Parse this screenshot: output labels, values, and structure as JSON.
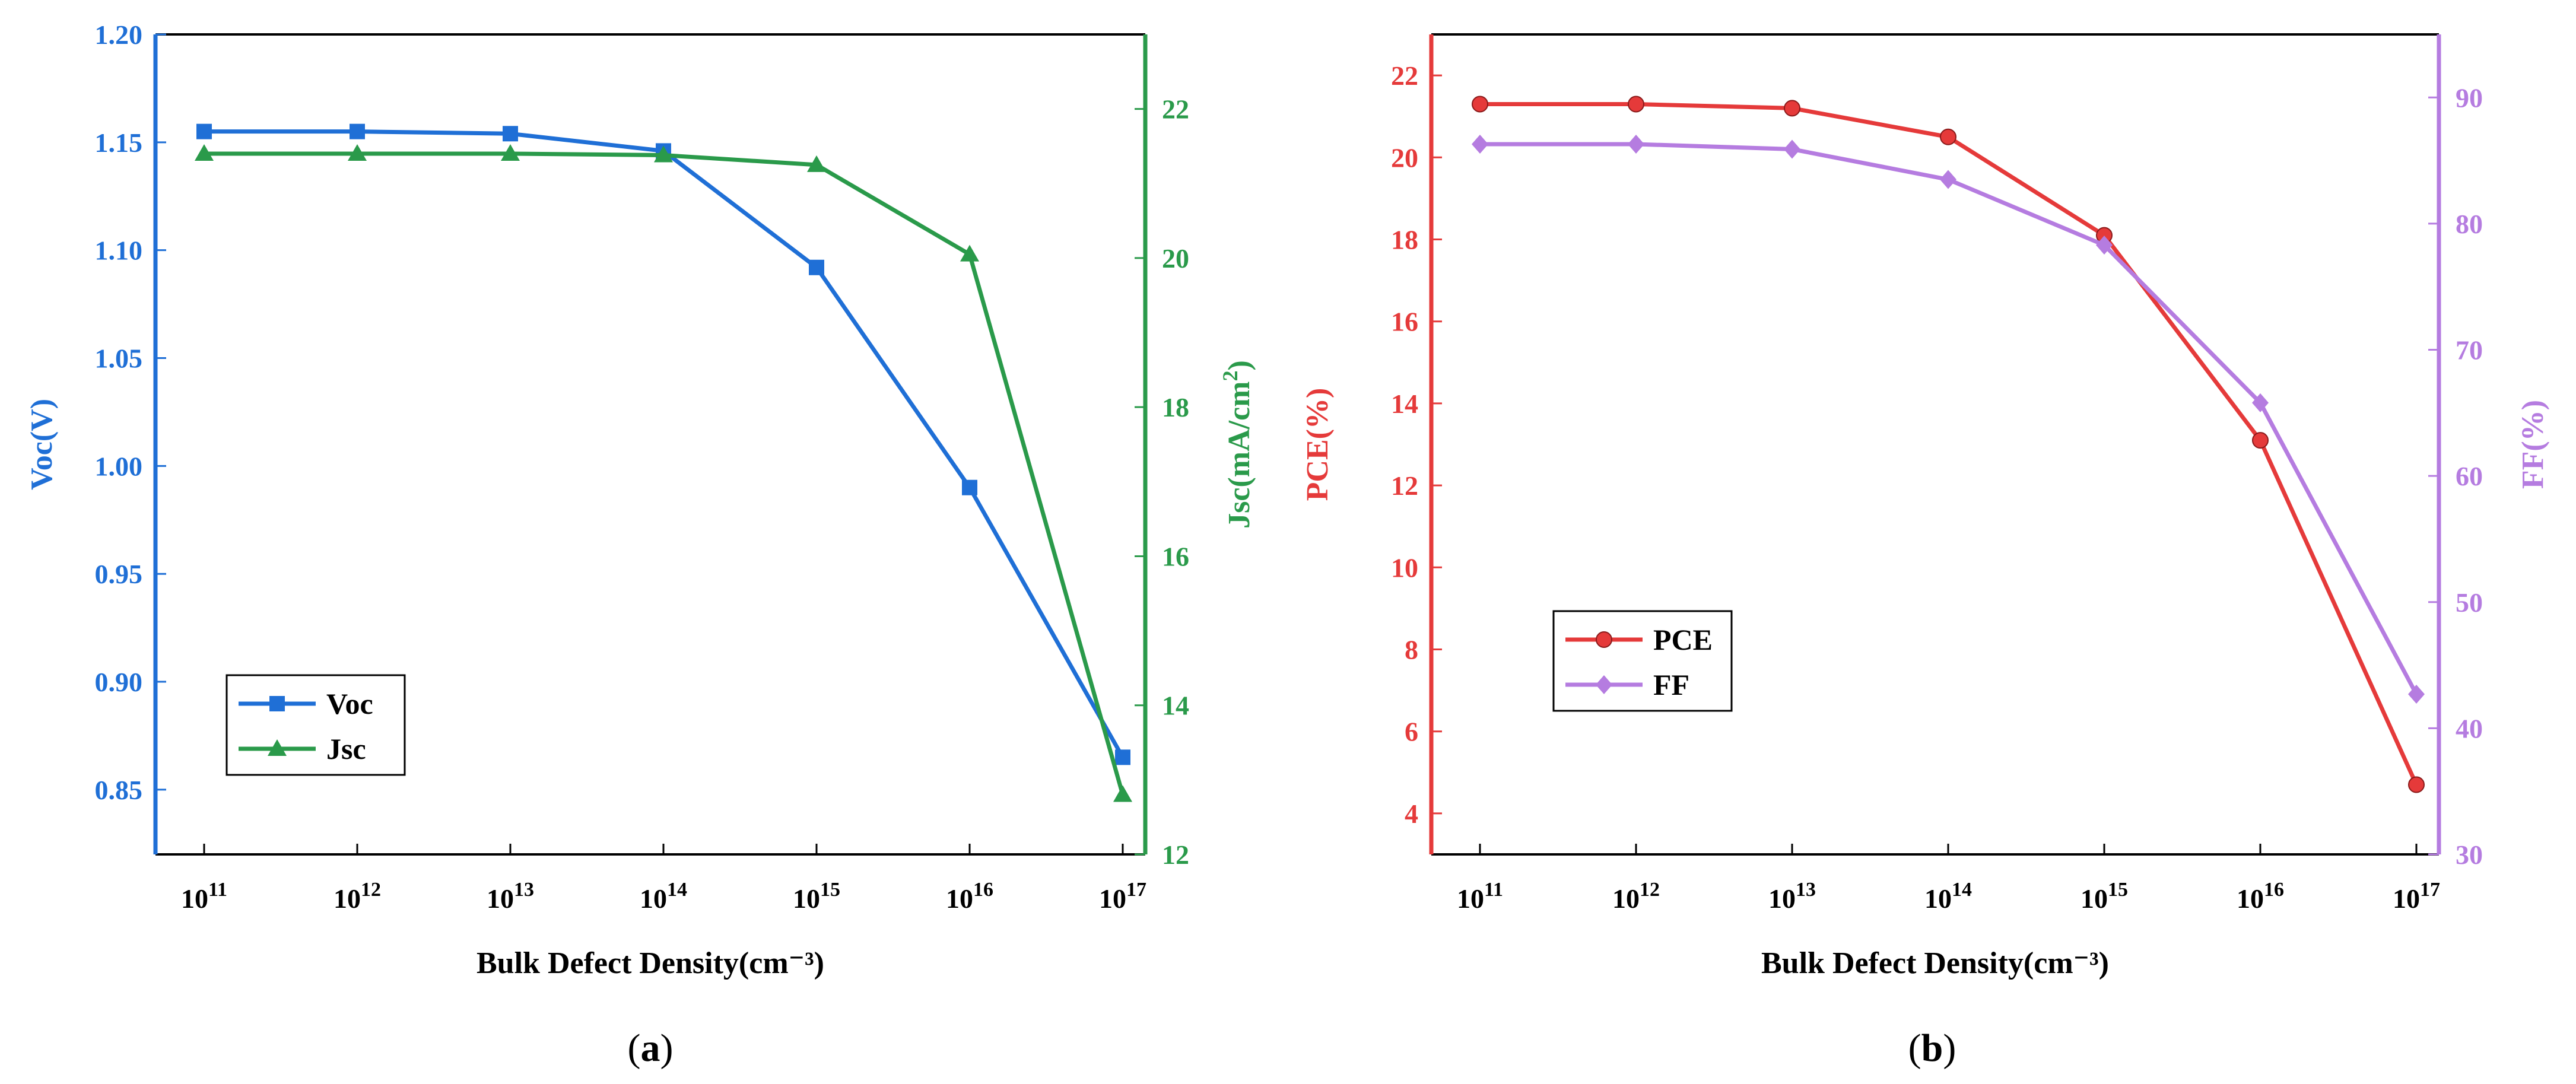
{
  "chart_data": [
    {
      "id": "a",
      "type": "line",
      "caption": "a",
      "xlabel": "Bulk Defect Density(cm⁻³)",
      "x_categories": [
        {
          "base": "10",
          "exp": "11"
        },
        {
          "base": "10",
          "exp": "12"
        },
        {
          "base": "10",
          "exp": "13"
        },
        {
          "base": "10",
          "exp": "14"
        },
        {
          "base": "10",
          "exp": "15"
        },
        {
          "base": "10",
          "exp": "16"
        },
        {
          "base": "10",
          "exp": "17"
        }
      ],
      "left_axis": {
        "label": "Voc(V)",
        "color": "#1f6fd6",
        "ylim": [
          0.82,
          1.2
        ],
        "ticks": [
          "0.85",
          "0.90",
          "0.95",
          "1.00",
          "1.05",
          "1.10",
          "1.15",
          "1.20"
        ]
      },
      "right_axis": {
        "label_main": "Jsc(mA/cm",
        "label_sup": "2",
        "label_end": ")",
        "color": "#2a9a4a",
        "ylim": [
          12,
          23
        ],
        "ticks": [
          "12",
          "14",
          "16",
          "18",
          "20",
          "22"
        ]
      },
      "series": [
        {
          "name": "Voc",
          "axis": "left",
          "marker": "square",
          "color": "#1f6fd6",
          "values": [
            1.155,
            1.155,
            1.154,
            1.146,
            1.092,
            0.99,
            0.865
          ]
        },
        {
          "name": "Jsc",
          "axis": "right",
          "marker": "triangle",
          "color": "#2a9a4a",
          "values": [
            21.4,
            21.4,
            21.4,
            21.38,
            21.25,
            20.05,
            12.8
          ]
        }
      ],
      "legend": {
        "position": "lower-left"
      }
    },
    {
      "id": "b",
      "type": "line",
      "caption": "b",
      "xlabel": "Bulk Defect Density(cm⁻³)",
      "x_categories": [
        {
          "base": "10",
          "exp": "11"
        },
        {
          "base": "10",
          "exp": "12"
        },
        {
          "base": "10",
          "exp": "13"
        },
        {
          "base": "10",
          "exp": "14"
        },
        {
          "base": "10",
          "exp": "15"
        },
        {
          "base": "10",
          "exp": "16"
        },
        {
          "base": "10",
          "exp": "17"
        }
      ],
      "left_axis": {
        "label": "PCE(%)",
        "color": "#e53a3a",
        "ylim": [
          3,
          23
        ],
        "ticks": [
          "4",
          "6",
          "8",
          "10",
          "12",
          "14",
          "16",
          "18",
          "20",
          "22"
        ]
      },
      "right_axis": {
        "label_main": "FF(%)",
        "label_sup": "",
        "label_end": "",
        "color": "#b57ce0",
        "ylim": [
          30,
          95
        ],
        "ticks": [
          "30",
          "40",
          "50",
          "60",
          "70",
          "80",
          "90"
        ]
      },
      "series": [
        {
          "name": "PCE",
          "axis": "left",
          "marker": "circle",
          "color": "#e53a3a",
          "values": [
            21.3,
            21.3,
            21.2,
            20.5,
            18.1,
            13.1,
            4.7
          ]
        },
        {
          "name": "FF",
          "axis": "right",
          "marker": "diamond",
          "color": "#b57ce0",
          "values": [
            86.3,
            86.3,
            85.9,
            83.5,
            78.3,
            65.8,
            42.7
          ]
        }
      ],
      "legend": {
        "position": "center-left"
      }
    }
  ]
}
